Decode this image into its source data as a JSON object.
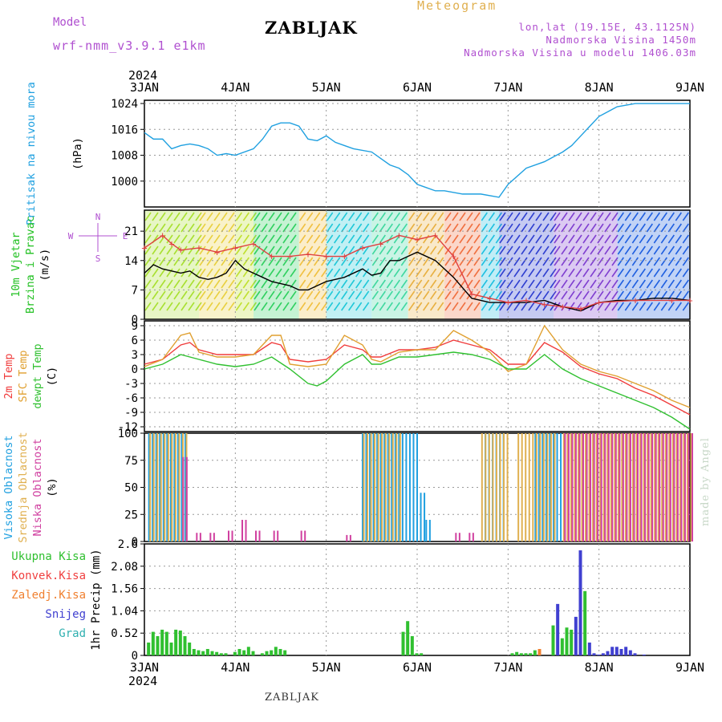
{
  "header": {
    "model_label": "Model",
    "model_name": "wrf-nmm_v3.9.1 e1km",
    "station": "ZABLJAK",
    "chart_kind": "Meteogram",
    "coords": "lon,lat (19.15E, 43.1125N)",
    "altitude": "Nadmorska Visina 1450m",
    "model_altitude": "Nadmorska Visina u modelu 1406.03m"
  },
  "footer": {
    "station": "ZABLJAK",
    "credit": "made by Angel"
  },
  "chart_data": {
    "type": "line",
    "year": "2024",
    "x_ticks": [
      "3JAN",
      "4JAN",
      "5JAN",
      "6JAN",
      "7JAN",
      "8JAN",
      "9JAN"
    ],
    "panels": [
      {
        "id": "pressure",
        "ylabel": [
          "Pritisak na nivou mora",
          "(hPa)"
        ],
        "ylim": [
          992,
          1025
        ],
        "yticks": [
          "1024",
          "1016",
          "1008",
          "1000"
        ],
        "series": [
          {
            "color": "#1fa0e0",
            "x": [
              0,
              0.1,
              0.2,
              0.3,
              0.4,
              0.5,
              0.6,
              0.7,
              0.8,
              0.9,
              1.0,
              1.2,
              1.3,
              1.4,
              1.5,
              1.6,
              1.7,
              1.8,
              1.9,
              2.0,
              2.1,
              2.2,
              2.3,
              2.5,
              2.6,
              2.7,
              2.8,
              2.9,
              3.0,
              3.1,
              3.2,
              3.3,
              3.5,
              3.7,
              3.9,
              4.0,
              4.2,
              4.4,
              4.5,
              4.6,
              4.7,
              4.8,
              4.9,
              5.0,
              5.2,
              5.4,
              5.6,
              5.8,
              6.0
            ],
            "y": [
              1015,
              1013,
              1013,
              1010,
              1011,
              1011.5,
              1011,
              1010,
              1008,
              1008.5,
              1008,
              1010,
              1013,
              1017,
              1018,
              1018,
              1017,
              1013,
              1012.5,
              1014,
              1012,
              1011,
              1010,
              1009,
              1007,
              1005,
              1004,
              1002,
              999,
              998,
              997,
              997,
              996,
              996,
              995,
              999,
              1004,
              1006,
              1007.5,
              1009,
              1011,
              1014,
              1017,
              1020,
              1023,
              1024,
              1024,
              1024,
              1024
            ]
          }
        ]
      },
      {
        "id": "wind",
        "ylabel": [
          "10m Vjetar",
          "Brzina i Pravac",
          "(m/s)"
        ],
        "ylim": [
          0,
          26
        ],
        "yticks": [
          "21",
          "14",
          "7",
          "0"
        ],
        "compass": {
          "n": "N",
          "w": "W",
          "e": "E",
          "s": "S"
        },
        "series": [
          {
            "name": "speed",
            "color": "#000000",
            "x": [
              0,
              0.1,
              0.2,
              0.3,
              0.4,
              0.5,
              0.6,
              0.7,
              0.8,
              0.9,
              1.0,
              1.1,
              1.2,
              1.3,
              1.4,
              1.5,
              1.6,
              1.7,
              1.8,
              1.9,
              2.0,
              2.2,
              2.4,
              2.5,
              2.6,
              2.7,
              2.8,
              2.9,
              3.0,
              3.2,
              3.4,
              3.6,
              3.8,
              4.0,
              4.2,
              4.4,
              4.6,
              4.8,
              5.0,
              5.2,
              5.4,
              5.6,
              5.8,
              6.0
            ],
            "y": [
              11,
              13,
              12,
              11.5,
              11,
              11.5,
              10,
              9.5,
              10,
              11,
              14,
              12,
              11,
              10,
              9,
              8.5,
              8,
              7,
              7,
              8,
              9,
              10,
              12,
              10.5,
              11,
              14,
              14,
              15,
              16,
              14,
              10,
              5,
              4,
              4,
              4,
              4.5,
              3,
              2,
              4,
              4.5,
              4.5,
              5,
              5,
              4.5
            ]
          },
          {
            "name": "gust",
            "color": "#e04040",
            "x": [
              0,
              0.2,
              0.3,
              0.4,
              0.6,
              0.8,
              1.0,
              1.2,
              1.4,
              1.6,
              1.8,
              2.0,
              2.2,
              2.4,
              2.6,
              2.8,
              3.0,
              3.2,
              3.4,
              3.6,
              3.8,
              4.0,
              4.2,
              4.4,
              4.6,
              4.8,
              5.0,
              5.4,
              5.8,
              6.0
            ],
            "y": [
              17,
              20,
              18,
              16.5,
              17,
              16,
              17,
              18,
              15,
              15,
              15.5,
              15,
              15,
              17,
              18,
              20,
              19,
              20,
              15,
              6,
              5,
              4,
              4.5,
              3.5,
              3,
              2.5,
              4,
              4.5,
              4.5,
              4.5
            ]
          }
        ]
      },
      {
        "id": "temperature",
        "ylabel": [
          "2m Temp",
          "SFC Temp",
          "dewpt Temp",
          "(C)"
        ],
        "ylim": [
          -13,
          10
        ],
        "yticks": [
          "9",
          "6",
          "3",
          "0",
          "-3",
          "-6",
          "-9",
          "-12"
        ],
        "series": [
          {
            "name": "2m Temp",
            "color": "#f03c3c",
            "x": [
              0,
              0.2,
              0.4,
              0.5,
              0.6,
              0.8,
              1.0,
              1.2,
              1.4,
              1.5,
              1.6,
              1.8,
              2.0,
              2.2,
              2.4,
              2.5,
              2.6,
              2.8,
              3.0,
              3.2,
              3.4,
              3.6,
              3.8,
              4.0,
              4.2,
              4.4,
              4.6,
              4.8,
              5.0,
              5.2,
              5.4,
              5.6,
              5.8,
              6.0
            ],
            "y": [
              1,
              2,
              5,
              5.5,
              4,
              3,
              3,
              3,
              5.5,
              5,
              2,
              1.5,
              2,
              5,
              4,
              2.5,
              2.5,
              4,
              4,
              4.5,
              6,
              5,
              4,
              1,
              1,
              5.5,
              3.5,
              0.5,
              -1,
              -2,
              -4,
              -5.5,
              -7.5,
              -9.5
            ]
          },
          {
            "name": "SFC Temp",
            "color": "#e0a030",
            "x": [
              0,
              0.2,
              0.4,
              0.5,
              0.6,
              0.8,
              1.0,
              1.2,
              1.4,
              1.5,
              1.6,
              1.8,
              2.0,
              2.2,
              2.4,
              2.5,
              2.6,
              2.8,
              3.0,
              3.2,
              3.4,
              3.6,
              3.8,
              4.0,
              4.2,
              4.4,
              4.6,
              4.8,
              5.0,
              5.2,
              5.4,
              5.6,
              5.8,
              6.0
            ],
            "y": [
              0.5,
              2,
              7,
              7.5,
              3.5,
              2.5,
              2.5,
              3,
              7,
              7,
              1,
              0.5,
              1,
              7,
              5,
              2,
              1.5,
              3.5,
              4,
              4,
              8,
              6,
              3.5,
              -0.5,
              1,
              9,
              4,
              1,
              -0.5,
              -1.5,
              -3,
              -4.5,
              -6.5,
              -8
            ]
          },
          {
            "name": "dewpt Temp",
            "color": "#30c030",
            "x": [
              0,
              0.2,
              0.4,
              0.6,
              0.8,
              1.0,
              1.2,
              1.4,
              1.6,
              1.8,
              1.9,
              2.0,
              2.2,
              2.4,
              2.5,
              2.6,
              2.8,
              3.0,
              3.2,
              3.4,
              3.6,
              3.8,
              4.0,
              4.2,
              4.4,
              4.6,
              4.8,
              5.0,
              5.2,
              5.4,
              5.6,
              5.8,
              6.0
            ],
            "y": [
              0,
              1,
              3,
              2,
              1,
              0.5,
              1,
              2.5,
              0,
              -3,
              -3.5,
              -2.5,
              1,
              3,
              1,
              1,
              2.5,
              2.5,
              3,
              3.5,
              3,
              2,
              0,
              0,
              3,
              0,
              -2,
              -3.5,
              -5,
              -6.5,
              -8,
              -10,
              -12.5
            ]
          }
        ]
      },
      {
        "id": "clouds",
        "ylabel": [
          "Visoka Oblacnost",
          "Srednja Oblacnost",
          "Niska Oblacnost",
          "(%)"
        ],
        "ylim": [
          0,
          100
        ],
        "yticks": [
          "100",
          "75",
          "50",
          "25",
          "0"
        ],
        "series": [
          {
            "name": "Visoka Oblacnost",
            "color": "#20a0e0",
            "segments": [
              [
                0.05,
                0.45,
                100
              ],
              [
                2.4,
                3.0,
                100
              ],
              [
                3.0,
                3.1,
                45
              ],
              [
                3.1,
                3.15,
                20
              ],
              [
                3.75,
                3.95,
                100
              ],
              [
                4.3,
                6.0,
                100
              ]
            ]
          },
          {
            "name": "Srednja Oblacnost",
            "color": "#e0b050",
            "segments": [
              [
                0.05,
                0.45,
                100
              ],
              [
                2.4,
                2.8,
                100
              ],
              [
                3.7,
                4.0,
                100
              ],
              [
                4.1,
                4.5,
                100
              ],
              [
                4.6,
                6.0,
                100
              ]
            ]
          },
          {
            "name": "Niska Oblacnost",
            "color": "#d040a0",
            "segments": [
              [
                0.4,
                0.45,
                78
              ],
              [
                0.55,
                0.6,
                8
              ],
              [
                0.7,
                0.75,
                8
              ],
              [
                0.9,
                0.95,
                10
              ],
              [
                1.05,
                1.1,
                20
              ],
              [
                1.2,
                1.25,
                10
              ],
              [
                1.4,
                1.45,
                10
              ],
              [
                1.7,
                1.75,
                10
              ],
              [
                2.2,
                2.25,
                6
              ],
              [
                3.4,
                3.45,
                8
              ],
              [
                3.55,
                3.6,
                8
              ],
              [
                4.6,
                6.0,
                100
              ]
            ]
          }
        ]
      },
      {
        "id": "precipitation",
        "ylabel": [
          "1hr Precip (mm)"
        ],
        "ylim": [
          0,
          2.6
        ],
        "yticks": [
          "2.6",
          "2.08",
          "1.56",
          "1.04",
          "0.52",
          "0"
        ],
        "legend": [
          {
            "name": "Ukupna Kisa",
            "color": "#30c030"
          },
          {
            "name": "Konvek.Kisa",
            "color": "#f04040"
          },
          {
            "name": "Zaledj.Kisa",
            "color": "#f08030"
          },
          {
            "name": "Snijeg",
            "color": "#4040d0"
          },
          {
            "name": "Grad",
            "color": "#30b0b0"
          }
        ],
        "bars": {
          "x": [
            0.05,
            0.1,
            0.15,
            0.2,
            0.25,
            0.3,
            0.35,
            0.4,
            0.45,
            0.5,
            0.55,
            0.6,
            0.65,
            0.7,
            0.75,
            0.8,
            0.85,
            0.9,
            1.0,
            1.05,
            1.1,
            1.15,
            1.2,
            1.3,
            1.35,
            1.4,
            1.45,
            1.5,
            1.55,
            2.85,
            2.9,
            2.95,
            3.0,
            3.05,
            4.05,
            4.1,
            4.15,
            4.2,
            4.25,
            4.3,
            4.35,
            4.5,
            4.55,
            4.6,
            4.65,
            4.7,
            4.75,
            4.8,
            4.85,
            4.9,
            4.95,
            5.0,
            5.05,
            5.1,
            5.15,
            5.2,
            5.25,
            5.3,
            5.35,
            5.4,
            5.5
          ],
          "values": [
            0.3,
            0.55,
            0.45,
            0.6,
            0.55,
            0.3,
            0.6,
            0.58,
            0.45,
            0.3,
            0.15,
            0.12,
            0.1,
            0.15,
            0.1,
            0.08,
            0.05,
            0.05,
            0.08,
            0.15,
            0.12,
            0.2,
            0.1,
            0.05,
            0.1,
            0.12,
            0.2,
            0.15,
            0.12,
            0.55,
            0.8,
            0.45,
            0.05,
            0.05,
            0.05,
            0.08,
            0.05,
            0.05,
            0.05,
            0.12,
            0.15,
            0.7,
            1.2,
            0.4,
            0.65,
            0.6,
            0.9,
            2.45,
            1.5,
            0.3,
            0.05,
            0.02,
            0.05,
            0.1,
            0.2,
            0.2,
            0.15,
            0.2,
            0.12,
            0.05,
            0.02
          ],
          "colors": [
            "#30c030",
            "#30c030",
            "#30c030",
            "#30c030",
            "#30c030",
            "#30c030",
            "#30c030",
            "#30c030",
            "#30c030",
            "#30c030",
            "#30c030",
            "#30c030",
            "#30c030",
            "#30c030",
            "#30c030",
            "#30c030",
            "#30c030",
            "#30c030",
            "#30c030",
            "#30c030",
            "#30c030",
            "#30c030",
            "#30c030",
            "#30c030",
            "#30c030",
            "#30c030",
            "#30c030",
            "#30c030",
            "#30c030",
            "#30c030",
            "#30c030",
            "#30c030",
            "#30c030",
            "#30c030",
            "#30c030",
            "#30c030",
            "#30c030",
            "#30c030",
            "#30c030",
            "#30c030",
            "#f08030",
            "#30c030",
            "#4040d0",
            "#30c030",
            "#30c030",
            "#30c030",
            "#4040d0",
            "#4040d0",
            "#30c030",
            "#4040d0",
            "#4040d0",
            "#4040d0",
            "#4040d0",
            "#4040d0",
            "#4040d0",
            "#4040d0",
            "#4040d0",
            "#4040d0",
            "#4040d0",
            "#4040d0",
            "#4040d0"
          ]
        }
      }
    ]
  }
}
